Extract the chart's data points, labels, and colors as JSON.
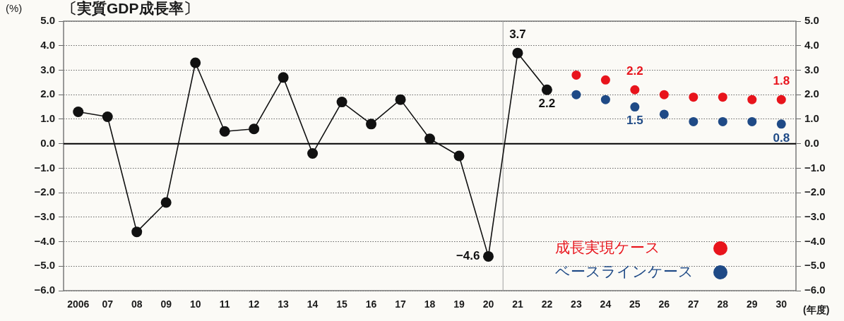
{
  "chart_data": {
    "type": "line",
    "title": "〔実質GDP成長率〕",
    "ylabel": "(%)",
    "xlabel": "(年度)",
    "series": [
      {
        "color": "#111111",
        "x": [
          2006,
          2007,
          2008,
          2009,
          2010,
          2011,
          2012,
          2013,
          2014,
          2015,
          2016,
          2017,
          2018,
          2019,
          2020,
          2021,
          2022
        ],
        "values": [
          1.3,
          1.1,
          -3.6,
          -2.4,
          3.3,
          0.5,
          0.6,
          2.7,
          -0.4,
          1.7,
          0.8,
          1.8,
          0.2,
          -0.5,
          -4.6,
          3.7,
          2.2
        ],
        "value_labels": [
          null,
          null,
          null,
          null,
          null,
          null,
          null,
          null,
          null,
          null,
          null,
          null,
          null,
          null,
          "−4.6",
          "3.7",
          "2.2"
        ]
      },
      {
        "type": "scatter",
        "name": "成長実現ケース",
        "color": "#e8141c",
        "x": [
          2023,
          2024,
          2025,
          2026,
          2027,
          2028,
          2029,
          2030
        ],
        "values": [
          2.8,
          2.6,
          2.2,
          2.0,
          1.9,
          1.9,
          1.8,
          1.8
        ],
        "value_labels": [
          null,
          null,
          "2.2",
          null,
          null,
          null,
          null,
          "1.8"
        ]
      },
      {
        "type": "scatter",
        "name": "ベースラインケース",
        "color": "#1f4a86",
        "x": [
          2023,
          2024,
          2025,
          2026,
          2027,
          2028,
          2029,
          2030
        ],
        "values": [
          2.0,
          1.8,
          1.5,
          1.2,
          0.9,
          0.9,
          0.9,
          0.8
        ],
        "value_labels": [
          null,
          null,
          "1.5",
          null,
          null,
          null,
          null,
          "0.8"
        ]
      }
    ],
    "xlim": [
      2005.5,
      2030.5
    ],
    "xticks": [
      2006,
      {
        "value": 2007,
        "label": "07"
      },
      {
        "value": 2008,
        "label": "08"
      },
      {
        "value": 2009,
        "label": "09"
      },
      {
        "value": 2010,
        "label": "10"
      },
      {
        "value": 2011,
        "label": "11"
      },
      {
        "value": 2012,
        "label": "12"
      },
      {
        "value": 2013,
        "label": "13"
      },
      {
        "value": 2014,
        "label": "14"
      },
      {
        "value": 2015,
        "label": "15"
      },
      {
        "value": 2016,
        "label": "16"
      },
      {
        "value": 2017,
        "label": "17"
      },
      {
        "value": 2018,
        "label": "18"
      },
      {
        "value": 2019,
        "label": "19"
      },
      {
        "value": 2020,
        "label": "20"
      },
      {
        "value": 2021,
        "label": "21"
      },
      {
        "value": 2022,
        "label": "22"
      },
      {
        "value": 2023,
        "label": "23"
      },
      {
        "value": 2024,
        "label": "24"
      },
      {
        "value": 2025,
        "label": "25"
      },
      {
        "value": 2026,
        "label": "26"
      },
      {
        "value": 2027,
        "label": "27"
      },
      {
        "value": 2028,
        "label": "28"
      },
      {
        "value": 2029,
        "label": "29"
      },
      {
        "value": 2030,
        "label": "30"
      }
    ],
    "ylim": [
      -6,
      5
    ],
    "yticks": [
      {
        "value": 5,
        "label": "5.0"
      },
      {
        "value": 4,
        "label": "4.0"
      },
      {
        "value": 3,
        "label": "3.0"
      },
      {
        "value": 2,
        "label": "2.0"
      },
      {
        "value": 1,
        "label": "1.0"
      },
      {
        "value": 0,
        "label": "0.0"
      },
      {
        "value": -1,
        "label": "−1.0"
      },
      {
        "value": -2,
        "label": "−2.0"
      },
      {
        "value": -3,
        "label": "−3.0"
      },
      {
        "value": -4,
        "label": "−4.0"
      },
      {
        "value": -5,
        "label": "−5.0"
      },
      {
        "value": -6,
        "label": "−6.0"
      }
    ],
    "y2lim": [
      -6,
      5
    ],
    "y2ticks": [
      {
        "value": 5,
        "label": "5.0"
      },
      {
        "value": 4,
        "label": "4.0"
      },
      {
        "value": 3,
        "label": "3.0"
      },
      {
        "value": 2,
        "label": "2.0"
      },
      {
        "value": 1,
        "label": "1.0"
      },
      {
        "value": 0,
        "label": "0.0"
      },
      {
        "value": -1,
        "label": "−1.0"
      },
      {
        "value": -2,
        "label": "−2.0"
      },
      {
        "value": -3,
        "label": "−3.0"
      },
      {
        "value": -4,
        "label": "−4.0"
      },
      {
        "value": -5,
        "label": "−5.0"
      },
      {
        "value": -6,
        "label": "−6.0"
      }
    ],
    "ref_lines": [
      {
        "axis": "y",
        "value": 0,
        "color": "#000000"
      },
      {
        "axis": "x",
        "value": 2020.5,
        "color": "#a0a0a0"
      }
    ],
    "grid": "y",
    "legend": "bottom right",
    "marker": "circle"
  }
}
